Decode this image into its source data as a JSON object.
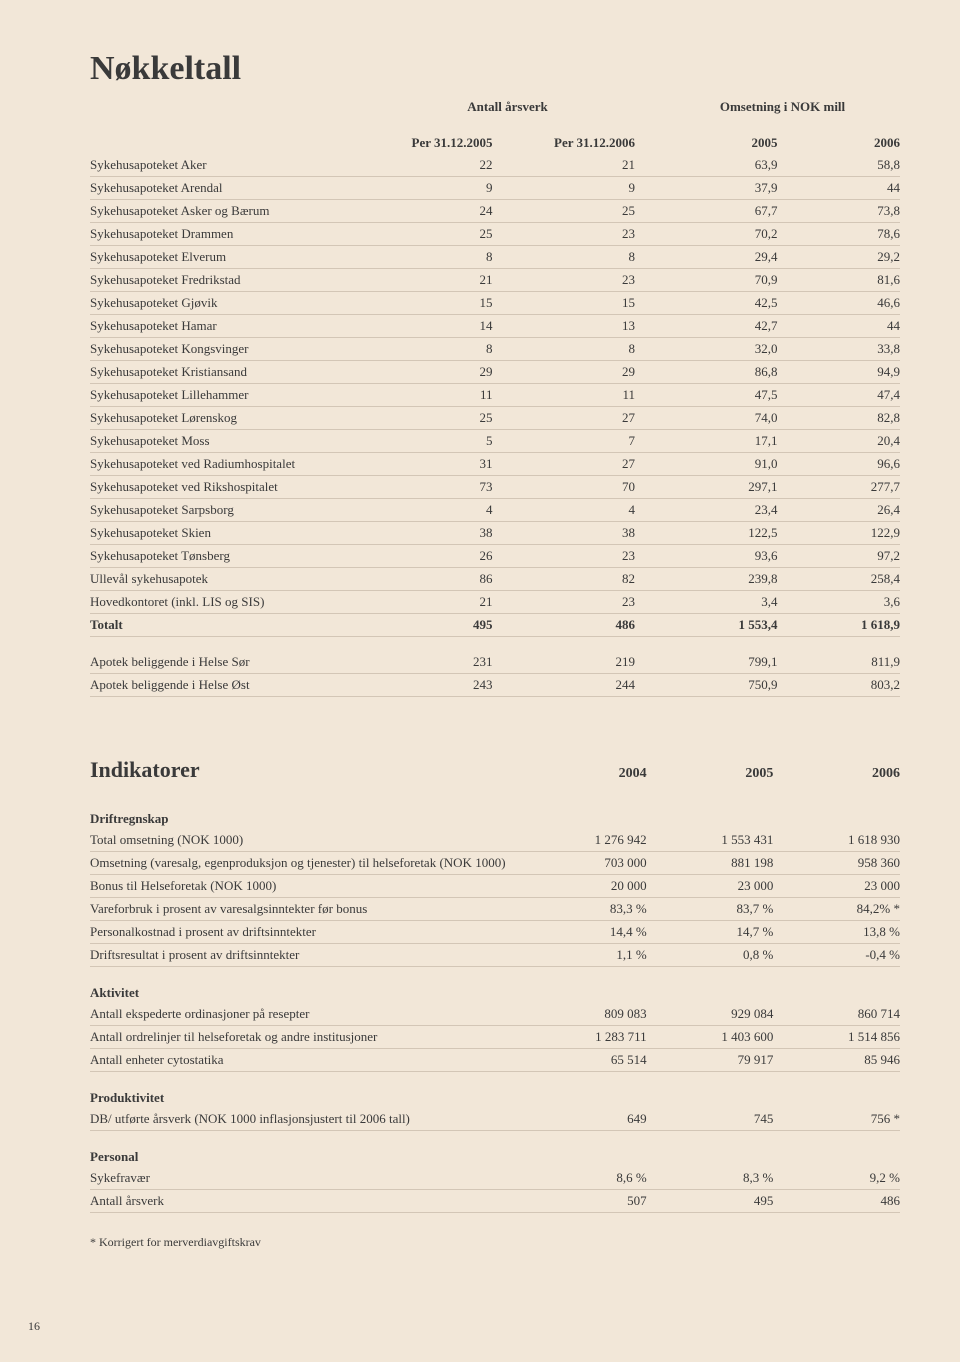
{
  "page_title": "Nøkkeltall",
  "table1": {
    "super_headers": [
      "Antall årsverk",
      "Omsetning i NOK mill"
    ],
    "columns": [
      "Per 31.12.2005",
      "Per 31.12.2006",
      "2005",
      "2006"
    ],
    "rows": [
      {
        "label": "Sykehusapoteket Aker",
        "v": [
          "22",
          "21",
          "63,9",
          "58,8"
        ]
      },
      {
        "label": "Sykehusapoteket Arendal",
        "v": [
          "9",
          "9",
          "37,9",
          "44"
        ]
      },
      {
        "label": "Sykehusapoteket Asker og Bærum",
        "v": [
          "24",
          "25",
          "67,7",
          "73,8"
        ]
      },
      {
        "label": "Sykehusapoteket Drammen",
        "v": [
          "25",
          "23",
          "70,2",
          "78,6"
        ]
      },
      {
        "label": "Sykehusapoteket Elverum",
        "v": [
          "8",
          "8",
          "29,4",
          "29,2"
        ]
      },
      {
        "label": "Sykehusapoteket Fredrikstad",
        "v": [
          "21",
          "23",
          "70,9",
          "81,6"
        ]
      },
      {
        "label": "Sykehusapoteket Gjøvik",
        "v": [
          "15",
          "15",
          "42,5",
          "46,6"
        ]
      },
      {
        "label": "Sykehusapoteket Hamar",
        "v": [
          "14",
          "13",
          "42,7",
          "44"
        ]
      },
      {
        "label": "Sykehusapoteket Kongsvinger",
        "v": [
          "8",
          "8",
          "32,0",
          "33,8"
        ]
      },
      {
        "label": "Sykehusapoteket Kristiansand",
        "v": [
          "29",
          "29",
          "86,8",
          "94,9"
        ]
      },
      {
        "label": "Sykehusapoteket Lillehammer",
        "v": [
          "11",
          "11",
          "47,5",
          "47,4"
        ]
      },
      {
        "label": "Sykehusapoteket Lørenskog",
        "v": [
          "25",
          "27",
          "74,0",
          "82,8"
        ]
      },
      {
        "label": "Sykehusapoteket Moss",
        "v": [
          "5",
          "7",
          "17,1",
          "20,4"
        ]
      },
      {
        "label": "Sykehusapoteket ved Radiumhospitalet",
        "v": [
          "31",
          "27",
          "91,0",
          "96,6"
        ]
      },
      {
        "label": "Sykehusapoteket ved Rikshospitalet",
        "v": [
          "73",
          "70",
          "297,1",
          "277,7"
        ]
      },
      {
        "label": "Sykehusapoteket Sarpsborg",
        "v": [
          "4",
          "4",
          "23,4",
          "26,4"
        ]
      },
      {
        "label": "Sykehusapoteket Skien",
        "v": [
          "38",
          "38",
          "122,5",
          "122,9"
        ]
      },
      {
        "label": "Sykehusapoteket Tønsberg",
        "v": [
          "26",
          "23",
          "93,6",
          "97,2"
        ]
      },
      {
        "label": "Ullevål sykehusapotek",
        "v": [
          "86",
          "82",
          "239,8",
          "258,4"
        ]
      },
      {
        "label": "Hovedkontoret (inkl. LIS og SIS)",
        "v": [
          "21",
          "23",
          "3,4",
          "3,6"
        ]
      }
    ],
    "total": {
      "label": "Totalt",
      "v": [
        "495",
        "486",
        "1 553,4",
        "1 618,9"
      ]
    },
    "extra": [
      {
        "label": "Apotek beliggende i Helse Sør",
        "v": [
          "231",
          "219",
          "799,1",
          "811,9"
        ]
      },
      {
        "label": "Apotek beliggende i Helse Øst",
        "v": [
          "243",
          "244",
          "750,9",
          "803,2"
        ]
      }
    ]
  },
  "table2": {
    "title": "Indikatorer",
    "year_cols": [
      "2004",
      "2005",
      "2006"
    ],
    "groups": [
      {
        "name": "Driftregnskap",
        "rows": [
          {
            "label": "Total omsetning (NOK 1000)",
            "v": [
              "1 276 942",
              "1 553 431",
              "1 618 930"
            ]
          },
          {
            "label": "Omsetning (varesalg, egenproduksjon og tjenester) til helseforetak (NOK 1000)",
            "v": [
              "703 000",
              "881 198",
              "958 360"
            ]
          },
          {
            "label": "Bonus til Helseforetak (NOK 1000)",
            "v": [
              "20 000",
              "23 000",
              "23 000"
            ]
          },
          {
            "label": "Vareforbruk i prosent av varesalgsinntekter før bonus",
            "v": [
              "83,3 %",
              "83,7 %",
              "84,2% *"
            ]
          },
          {
            "label": "Personalkostnad i prosent av driftsinntekter",
            "v": [
              "14,4 %",
              "14,7 %",
              "13,8 %"
            ]
          },
          {
            "label": "Driftsresultat i prosent av driftsinntekter",
            "v": [
              "1,1 %",
              "0,8 %",
              "-0,4 %"
            ]
          }
        ]
      },
      {
        "name": "Aktivitet",
        "rows": [
          {
            "label": "Antall ekspederte ordinasjoner på resepter",
            "v": [
              "809 083",
              "929 084",
              "860 714"
            ]
          },
          {
            "label": "Antall ordrelinjer til helseforetak og andre institusjoner",
            "v": [
              "1 283 711",
              "1 403 600",
              "1 514 856"
            ]
          },
          {
            "label": "Antall enheter cytostatika",
            "v": [
              "65 514",
              "79 917",
              "85 946"
            ]
          }
        ]
      },
      {
        "name": "Produktivitet",
        "rows": [
          {
            "label": "DB/ utførte årsverk (NOK 1000 inflasjonsjustert til 2006 tall)",
            "v": [
              "649",
              "745",
              "756 *"
            ]
          }
        ]
      },
      {
        "name": "Personal",
        "rows": [
          {
            "label": "Sykefravær",
            "v": [
              "8,6 %",
              "8,3 %",
              "9,2 %"
            ]
          },
          {
            "label": "Antall årsverk",
            "v": [
              "507",
              "495",
              "486"
            ]
          }
        ]
      }
    ]
  },
  "footnote": "* Korrigert for merverdiavgiftskrav",
  "page_number": "16"
}
